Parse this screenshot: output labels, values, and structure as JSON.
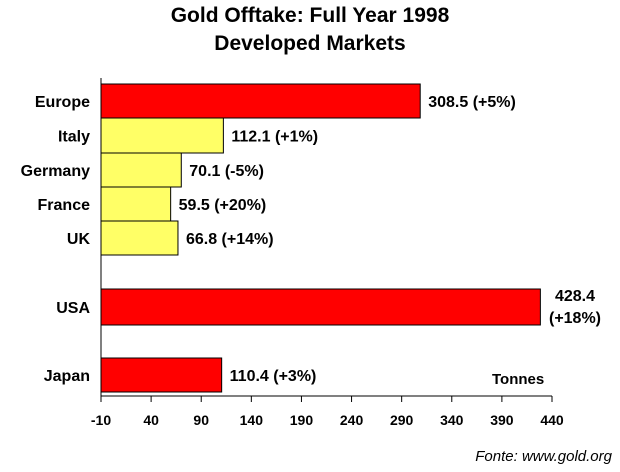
{
  "chart_data": {
    "type": "bar",
    "orientation": "horizontal",
    "title": [
      "Gold Offtake: Full Year 1998",
      "Developed Markets"
    ],
    "categories": [
      "Europe",
      "Italy",
      "Germany",
      "France",
      "UK",
      "USA",
      "Japan"
    ],
    "values": [
      308.5,
      112.1,
      70.1,
      59.5,
      66.8,
      428.4,
      110.4
    ],
    "bar_labels": [
      [
        "308.5 (+5%)"
      ],
      [
        "112.1 (+1%)"
      ],
      [
        "70.1 (-5%)"
      ],
      [
        "59.5 (+20%)"
      ],
      [
        "66.8 (+14%)"
      ],
      [
        "428.4",
        "(+18%)"
      ],
      [
        "110.4 (+3%)"
      ]
    ],
    "bar_colors": [
      "#ff0000",
      "#ffff66",
      "#ffff66",
      "#ffff66",
      "#ffff66",
      "#ff0000",
      "#ff0000"
    ],
    "xlim": [
      -10,
      440
    ],
    "xticks": [
      -10,
      40,
      90,
      140,
      190,
      240,
      290,
      340,
      390,
      440
    ],
    "xlabel": "",
    "units_label": "Tonnes",
    "source": "Fonte: www.gold.org",
    "grid": false,
    "legend": "none"
  }
}
